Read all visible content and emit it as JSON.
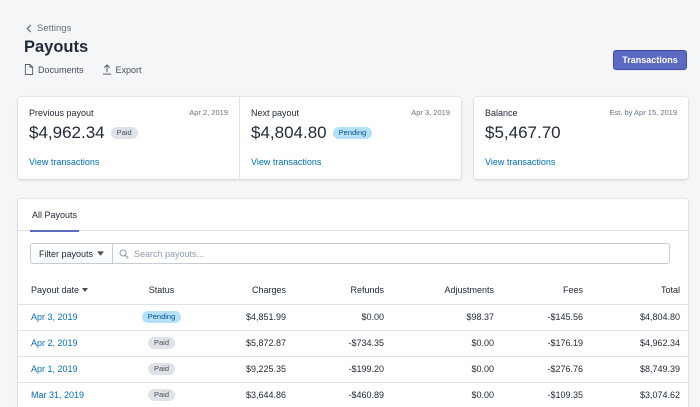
{
  "header": {
    "back_label": "Settings",
    "title": "Payouts",
    "documents_label": "Documents",
    "export_label": "Export",
    "transactions_button": "Transactions"
  },
  "summary": [
    {
      "label": "Previous payout",
      "date": "Apr 2, 2019",
      "amount": "$4,962.34",
      "badge": "Paid",
      "link": "View transactions"
    },
    {
      "label": "Next payout",
      "date": "Apr 3, 2019",
      "amount": "$4,804.80",
      "badge": "Pending",
      "link": "View transactions"
    }
  ],
  "balance": {
    "label": "Balance",
    "date": "Est. by Apr 15, 2019",
    "amount": "$5,467.70",
    "link": "View transactions"
  },
  "tabs": [
    {
      "label": "All Payouts"
    }
  ],
  "filter": {
    "button_label": "Filter payouts",
    "search_placeholder": "Search payouts..."
  },
  "table": {
    "headers": [
      "Payout date",
      "Status",
      "Charges",
      "Refunds",
      "Adjustments",
      "Fees",
      "Total"
    ],
    "rows": [
      {
        "date": "Apr 3, 2019",
        "status": "Pending",
        "charges": "$4,851.99",
        "refunds": "$0.00",
        "adjustments": "$98.37",
        "fees": "-$145.56",
        "total": "$4,804.80"
      },
      {
        "date": "Apr 2, 2019",
        "status": "Paid",
        "charges": "$5,872.87",
        "refunds": "-$734.35",
        "adjustments": "$0.00",
        "fees": "-$176.19",
        "total": "$4,962.34"
      },
      {
        "date": "Apr 1, 2019",
        "status": "Paid",
        "charges": "$9,225.35",
        "refunds": "-$199.20",
        "adjustments": "$0.00",
        "fees": "-$276.76",
        "total": "$8,749.39"
      },
      {
        "date": "Mar 31, 2019",
        "status": "Paid",
        "charges": "$3,644.86",
        "refunds": "-$460.89",
        "adjustments": "$0.00",
        "fees": "-$109.35",
        "total": "$3,074.62"
      }
    ]
  },
  "colors": {
    "accent": "#5c6ac4",
    "link": "#006fbb",
    "pending_bg": "#b4e1fa",
    "paid_bg": "#dfe3e8"
  }
}
